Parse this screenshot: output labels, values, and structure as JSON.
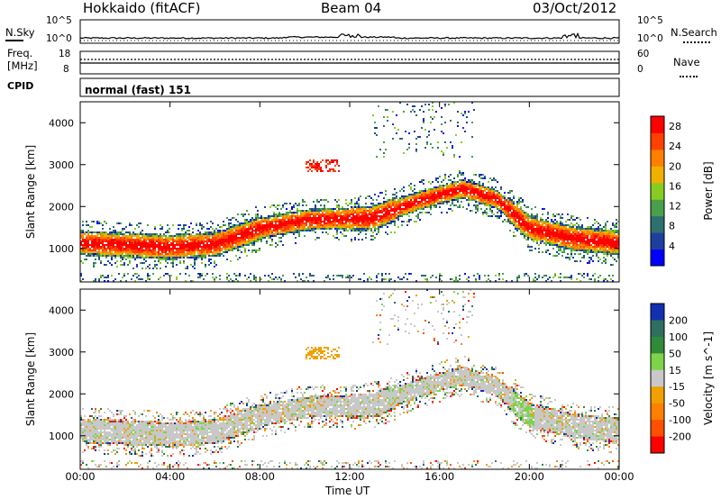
{
  "header": {
    "station": "Hokkaido (fitACF)",
    "beam": "Beam 04",
    "date": "03/Oct/2012"
  },
  "noise_panel": {
    "left_label": "N.Sky",
    "right_label": "N.Search",
    "left_ticks": [
      "10^5",
      "10^0"
    ],
    "right_ticks": [
      "10^5",
      "10^0"
    ]
  },
  "freq_panel": {
    "left_label_1": "Freq.",
    "left_label_2": "[MHz]",
    "right_label": "Nave",
    "left_ticks": [
      "18",
      "8"
    ],
    "right_ticks": [
      "60",
      "0"
    ]
  },
  "cpid": {
    "label": "CPID",
    "value": "normal (fast) 151"
  },
  "colors": {
    "power": [
      "#0000ff",
      "#1f3f9f",
      "#2e6f6f",
      "#4aa04a",
      "#88cc22",
      "#f0b000",
      "#ff8000",
      "#ff4000",
      "#ff0000"
    ],
    "velocity_pos": [
      "#1030b0",
      "#2f6f5f",
      "#2f8a3a",
      "#7ed34a"
    ],
    "velocity_zero": "#c8c8c8",
    "velocity_neg": [
      "#f0a000",
      "#ff8000",
      "#ff5000",
      "#ff0000"
    ]
  },
  "chart_data": [
    {
      "type": "heatmap",
      "quantity": "power",
      "ylabel": "Slant Range [km]",
      "xlabel": "Time UT",
      "x_ticks": [
        "00:00",
        "04:00",
        "08:00",
        "12:00",
        "16:00",
        "20:00",
        "00:00"
      ],
      "y_ticks": [
        1000,
        2000,
        3000,
        4000
      ],
      "xlim_hours": [
        0,
        24
      ],
      "ylim_km": [
        200,
        4500
      ],
      "colorbar_label": "Power [dB]",
      "colorbar_ticks": [
        4,
        8,
        12,
        16,
        20,
        24,
        28
      ],
      "colorbar_range": [
        0,
        30
      ],
      "main_band_center_km": [
        [
          0,
          1150
        ],
        [
          4,
          1050
        ],
        [
          6,
          1120
        ],
        [
          8,
          1500
        ],
        [
          10,
          1700
        ],
        [
          13,
          1750
        ],
        [
          15,
          2150
        ],
        [
          17,
          2450
        ],
        [
          18.5,
          2200
        ],
        [
          20,
          1500
        ],
        [
          22,
          1250
        ],
        [
          24,
          1150
        ]
      ]
    },
    {
      "type": "heatmap",
      "quantity": "velocity",
      "ylabel": "Slant Range [km]",
      "xlabel": "Time UT",
      "x_ticks": [
        "00:00",
        "04:00",
        "08:00",
        "12:00",
        "16:00",
        "20:00",
        "00:00"
      ],
      "y_ticks": [
        1000,
        2000,
        3000,
        4000
      ],
      "xlim_hours": [
        0,
        24
      ],
      "ylim_km": [
        200,
        4500
      ],
      "colorbar_label": "Velocity [m s^-1]",
      "colorbar_ticks": [
        200,
        100,
        50,
        15,
        -15,
        -50,
        -100,
        -200
      ],
      "colorbar_range": [
        -250,
        250
      ]
    }
  ],
  "x_axis_title": "Time UT"
}
